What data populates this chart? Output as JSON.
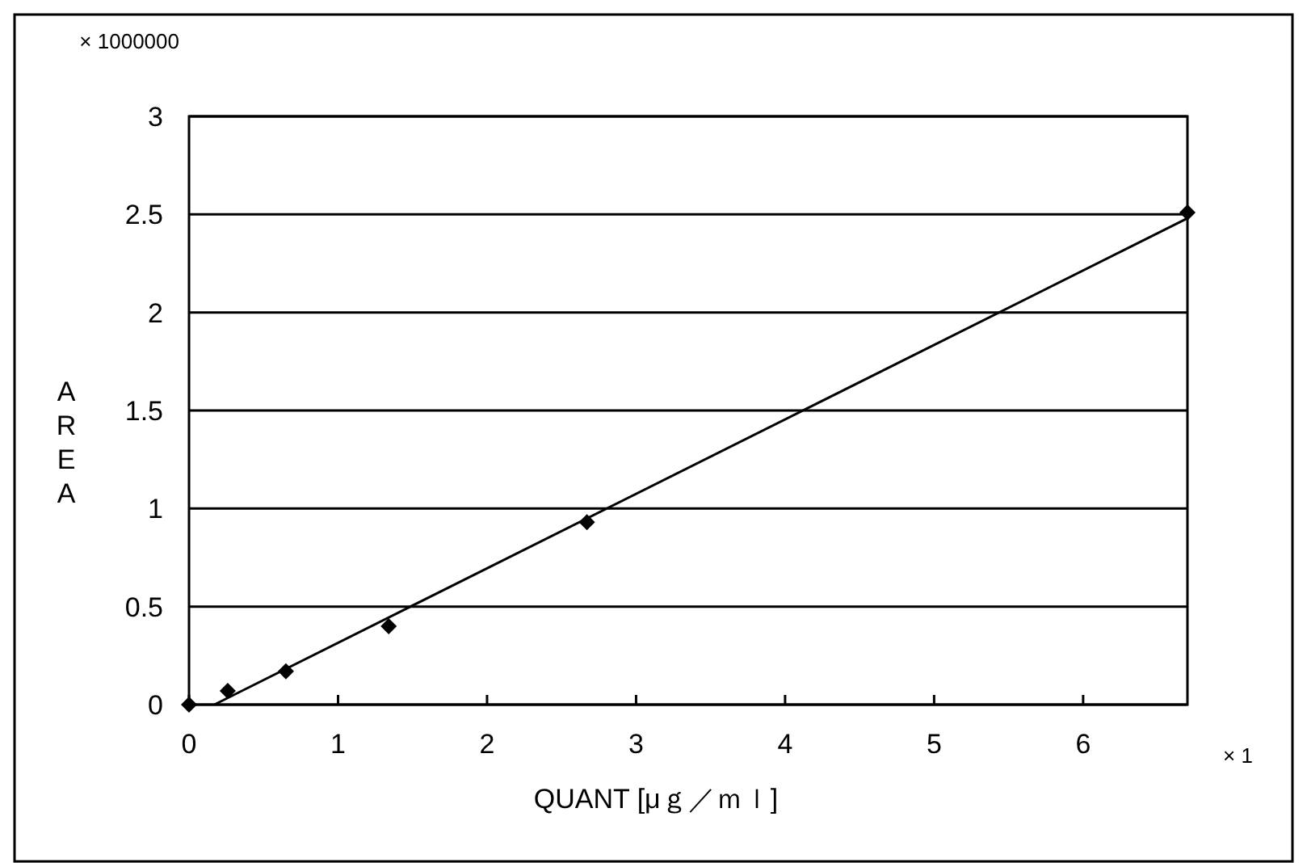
{
  "chart_data": {
    "type": "scatter",
    "xlabel": "QUANT [μｇ／ｍｌ]",
    "ylabel": "AREA",
    "annotations": [
      "× 1000000",
      "× 1"
    ],
    "xlim": [
      0,
      6.7
    ],
    "xticks": [
      0,
      1,
      2,
      3,
      4,
      5,
      6
    ],
    "ylim": [
      0,
      3
    ],
    "yticks": [
      0,
      0.5,
      1,
      1.5,
      2,
      2.5,
      3
    ],
    "grid": "y",
    "series": [
      {
        "color": "#000000",
        "marker": "diamond",
        "x": [
          0,
          0.26,
          0.65,
          1.34,
          2.67,
          6.7
        ],
        "values": [
          0,
          0.07,
          0.17,
          0.4,
          0.93,
          2.51
        ]
      },
      {
        "type": "line",
        "color": "#000000",
        "x": [
          0.17,
          6.7
        ],
        "values": [
          0,
          2.48
        ]
      }
    ]
  }
}
